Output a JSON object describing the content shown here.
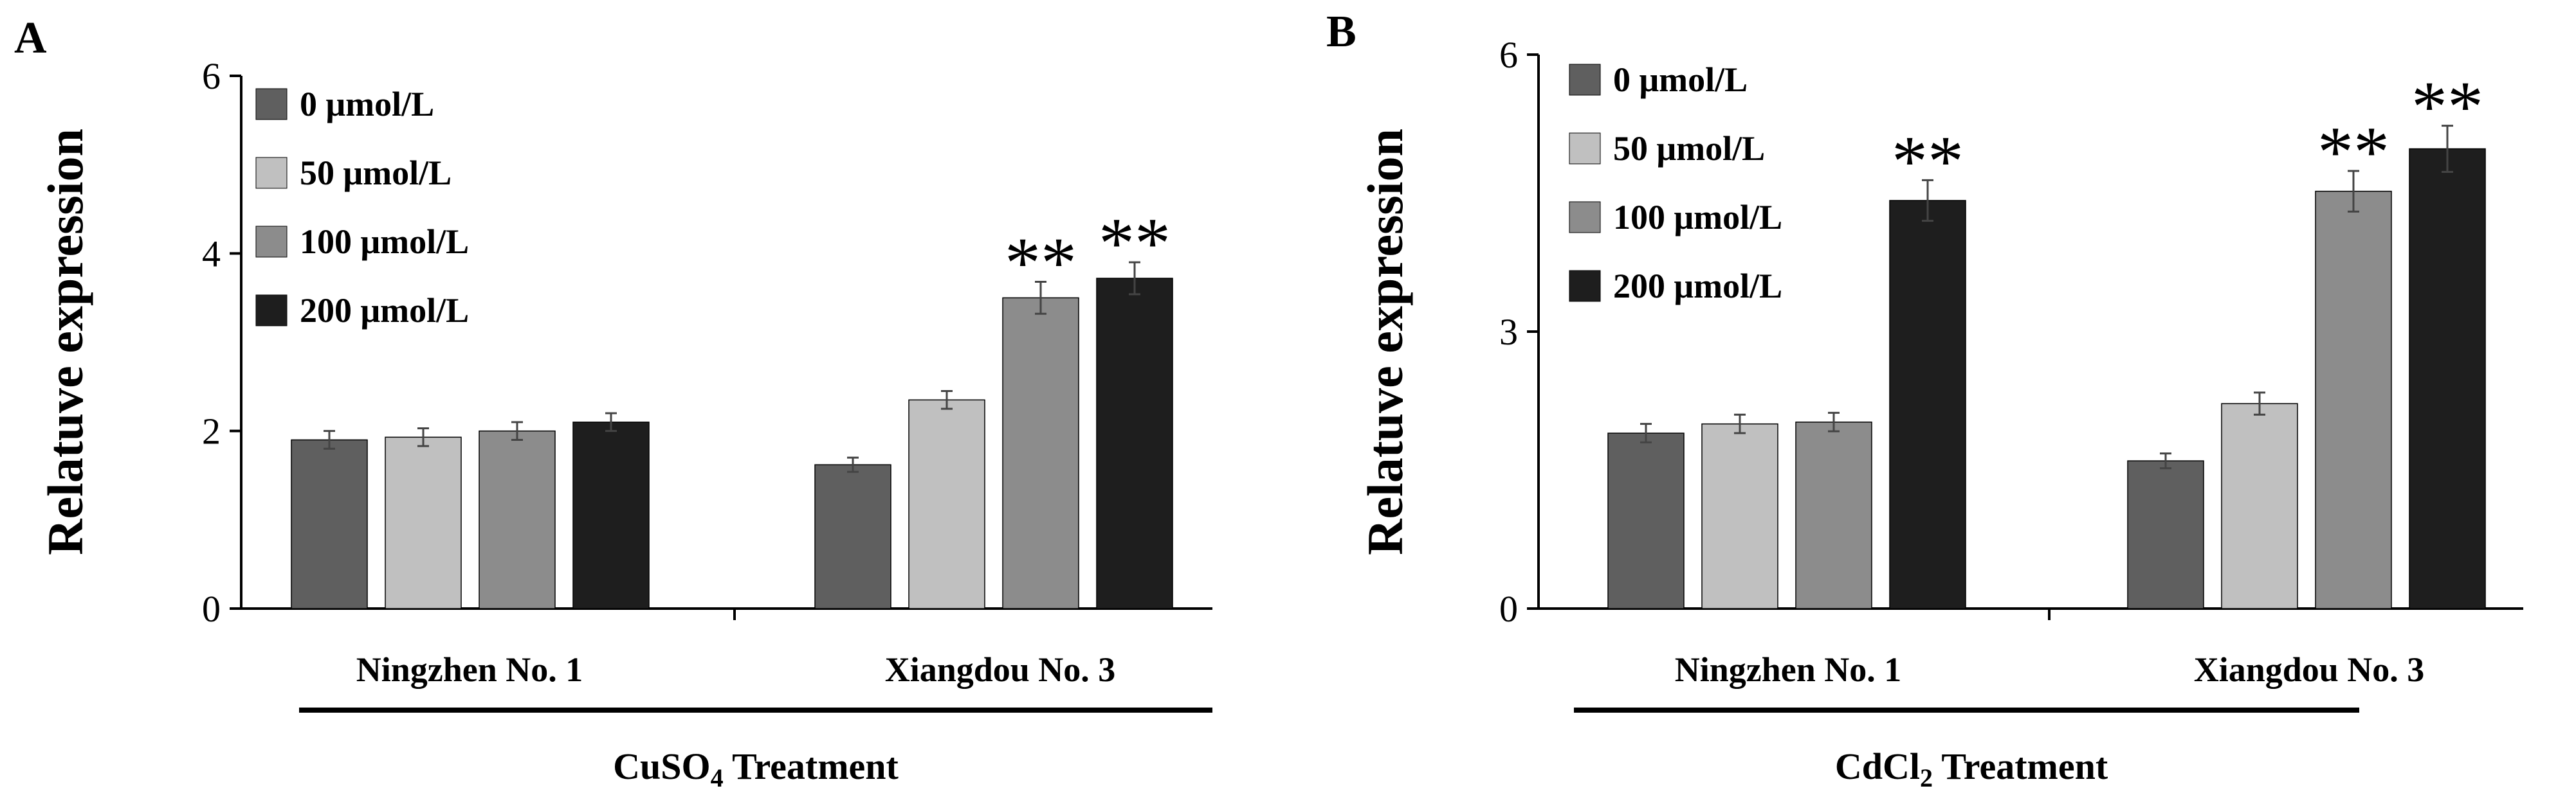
{
  "chart_data": [
    {
      "type": "bar",
      "panel_label": "A",
      "categories": [
        "Ningzhen No. 1",
        "Xiangdou No. 3"
      ],
      "series": [
        {
          "name": "0 μmol/L",
          "color": "#5f5f5f",
          "values": [
            1.9,
            1.62
          ],
          "errors": [
            0.1,
            0.08
          ]
        },
        {
          "name": "50 μmol/L",
          "color": "#c0c0c0",
          "values": [
            1.93,
            2.35
          ],
          "errors": [
            0.1,
            0.1
          ]
        },
        {
          "name": "100 μmol/L",
          "color": "#8c8c8c",
          "values": [
            2.0,
            3.5
          ],
          "errors": [
            0.1,
            0.18
          ]
        },
        {
          "name": "200 μmol/L",
          "color": "#1e1e1e",
          "values": [
            2.1,
            3.72
          ],
          "errors": [
            0.1,
            0.18
          ]
        }
      ],
      "significance": [
        {
          "category_index": 1,
          "series_index": 2,
          "label": "**"
        },
        {
          "category_index": 1,
          "series_index": 3,
          "label": "**"
        }
      ],
      "ylabel": "Relatuve expression",
      "ylim": [
        0,
        6
      ],
      "yticks": [
        0,
        2,
        4,
        6
      ],
      "treatment_label": {
        "main": "CuSO",
        "sub": "4",
        "rest": " Treatment"
      },
      "legend_position": "top-left",
      "grid": false
    },
    {
      "type": "bar",
      "panel_label": "B",
      "categories": [
        "Ningzhen No. 1",
        "Xiangdou No. 3"
      ],
      "series": [
        {
          "name": "0 μmol/L",
          "color": "#5f5f5f",
          "values": [
            1.9,
            1.6
          ],
          "errors": [
            0.1,
            0.08
          ]
        },
        {
          "name": "50 μmol/L",
          "color": "#c0c0c0",
          "values": [
            2.0,
            2.22
          ],
          "errors": [
            0.1,
            0.12
          ]
        },
        {
          "name": "100 μmol/L",
          "color": "#8c8c8c",
          "values": [
            2.02,
            4.52
          ],
          "errors": [
            0.1,
            0.22
          ]
        },
        {
          "name": "200 μmol/L",
          "color": "#1e1e1e",
          "values": [
            4.42,
            4.98
          ],
          "errors": [
            0.22,
            0.25
          ]
        }
      ],
      "significance": [
        {
          "category_index": 0,
          "series_index": 3,
          "label": "**"
        },
        {
          "category_index": 1,
          "series_index": 2,
          "label": "**"
        },
        {
          "category_index": 1,
          "series_index": 3,
          "label": "**"
        }
      ],
      "ylabel": "Relatuve expression",
      "ylim": [
        0,
        6
      ],
      "yticks": [
        0,
        3,
        6
      ],
      "treatment_label": {
        "main": "CdCl",
        "sub": "2",
        "rest": " Treatment"
      },
      "legend_position": "top-left",
      "grid": false
    }
  ]
}
